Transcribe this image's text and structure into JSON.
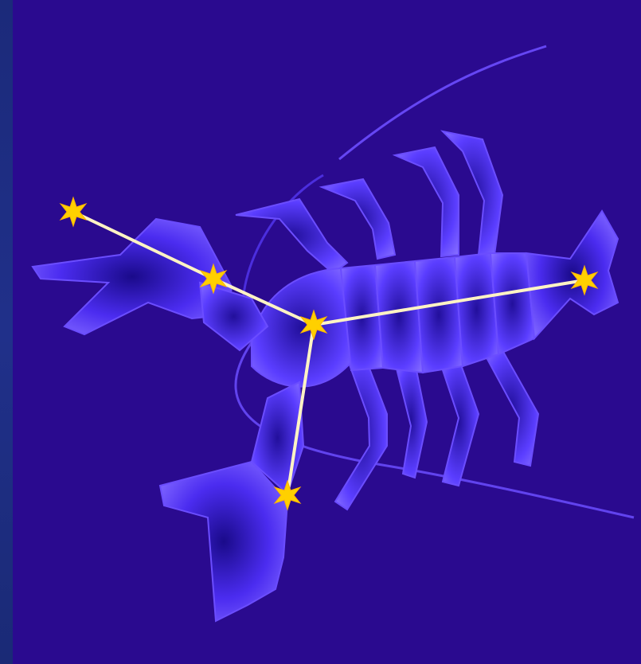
{
  "colors": {
    "background": "#2a0a8f",
    "body_fill": "#6b4dff",
    "body_shadow": "#2a14b8",
    "star": "#ffd000",
    "connector": "#fff3c4"
  },
  "stars": [
    {
      "name": "star-claw-tip",
      "icon": "star-icon"
    },
    {
      "name": "star-claw-joint",
      "icon": "star-icon"
    },
    {
      "name": "star-center",
      "icon": "star-icon"
    },
    {
      "name": "star-tail",
      "icon": "star-icon"
    },
    {
      "name": "star-lower-claw",
      "icon": "star-icon"
    }
  ]
}
